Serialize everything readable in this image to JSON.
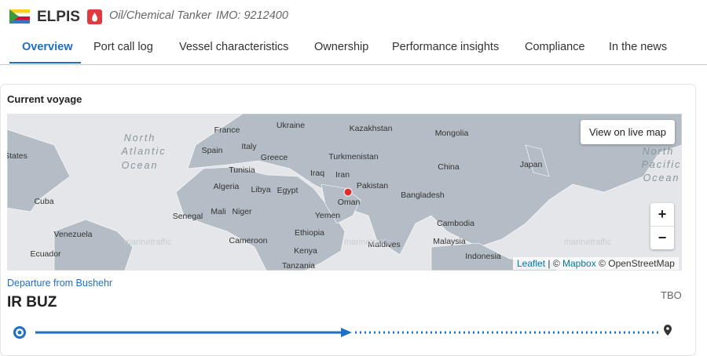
{
  "header": {
    "vessel_name": "ELPIS",
    "vessel_type": "Oil/Chemical Tanker",
    "imo": "IMO: 9212400"
  },
  "tabs": [
    "Overview",
    "Port call log",
    "Vessel characteristics",
    "Ownership",
    "Performance insights",
    "Compliance",
    "In the news"
  ],
  "card": {
    "title": "Current voyage",
    "map": {
      "labels": [
        "States",
        "North",
        "Atlantic",
        "Ocean",
        "France",
        "Ukraine",
        "Kazakhstan",
        "Mongolia",
        "Italy",
        "Spain",
        "Greece",
        "Turkmenistan",
        "China",
        "Japan",
        "North",
        "Pacific",
        "Ocean",
        "Tunisia",
        "Iraq",
        "Iran",
        "Algeria",
        "Libya",
        "Egypt",
        "Pakistan",
        "Bangladesh",
        "Cuba",
        "Oman",
        "Senegal",
        "Mali",
        "Niger",
        "Yemen",
        "Cambodia",
        "Venezuela",
        "Cameroon",
        "Ethiopia",
        "Malaysia",
        "Ecuador",
        "Kenya",
        "Maldives",
        "Indonesia",
        "Tanzania",
        "marinetraffic",
        "marinetraffic",
        "marinetraffic"
      ],
      "live_button": "View on live map",
      "zoom_in": "+",
      "zoom_out": "−",
      "attribution": {
        "leaflet": "Leaflet",
        "separator": "| ©",
        "mapbox": "Mapbox",
        "osm": "© OpenStreetMap"
      }
    },
    "departure": "Departure from Bushehr",
    "origin": "IR BUZ",
    "destination": "TBO"
  }
}
